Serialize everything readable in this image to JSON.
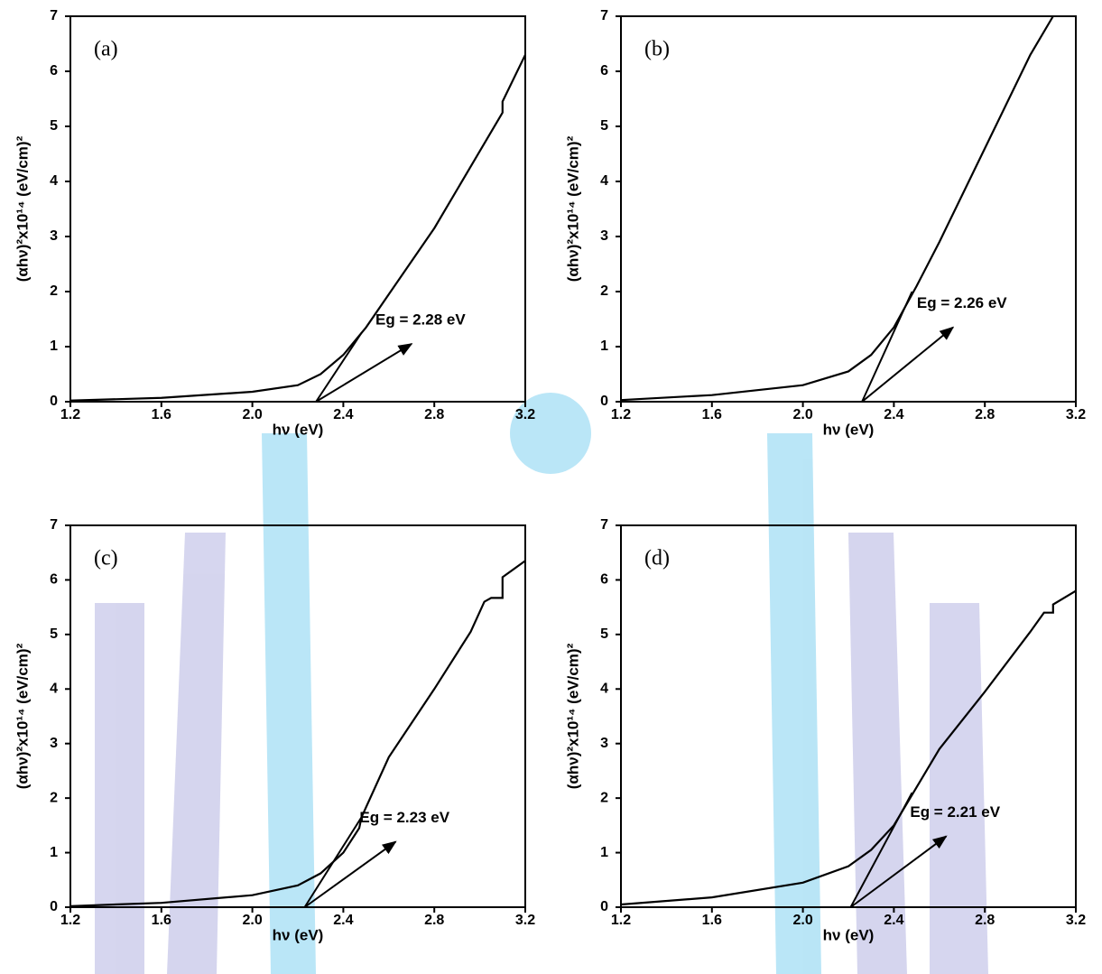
{
  "chart_data": [
    {
      "type": "line",
      "panel_label": "(a)",
      "annotation": "Eg = 2.28 eV",
      "x_label": "hν (eV)",
      "y_label": "(αhν)²x10¹⁴ (eV/cm)²",
      "color": "#000000",
      "x": [
        1.2,
        1.6,
        2.0,
        2.2,
        2.3,
        2.4,
        2.5,
        2.6,
        2.8,
        3.0,
        3.1,
        3.1,
        3.2
      ],
      "values": [
        0.02,
        0.07,
        0.18,
        0.3,
        0.5,
        0.85,
        1.35,
        1.95,
        3.15,
        4.55,
        5.25,
        5.45,
        6.3
      ],
      "tangent": {
        "x": [
          2.28,
          2.48
        ],
        "y": [
          0,
          1.25
        ]
      },
      "arrow": {
        "x": [
          2.28,
          2.7
        ],
        "y": [
          0,
          1.05
        ]
      },
      "xlim": [
        1.2,
        3.2
      ],
      "ylim": [
        0,
        7
      ],
      "xticks": [
        1.2,
        1.6,
        {
          "value": 2,
          "label": "2.0"
        },
        2.4,
        2.8,
        3.2
      ],
      "yticks": [
        0,
        1,
        2,
        3,
        4,
        5,
        6,
        7
      ]
    },
    {
      "type": "line",
      "panel_label": "(b)",
      "annotation": "Eg = 2.26 eV",
      "x_label": "hν (eV)",
      "y_label": "(αhν)²x10¹⁴ (eV/cm)²",
      "color": "#000000",
      "x": [
        1.2,
        1.6,
        2.0,
        2.2,
        2.3,
        2.4,
        2.5,
        2.6,
        2.8,
        3.0,
        3.1
      ],
      "values": [
        0.03,
        0.12,
        0.3,
        0.55,
        0.85,
        1.35,
        2.1,
        2.9,
        4.6,
        6.3,
        7.0
      ],
      "tangent": {
        "x": [
          2.26,
          2.48
        ],
        "y": [
          0,
          2.0
        ]
      },
      "arrow": {
        "x": [
          2.26,
          2.66
        ],
        "y": [
          0,
          1.35
        ]
      },
      "xlim": [
        1.2,
        3.2
      ],
      "ylim": [
        0,
        7
      ],
      "xticks": [
        1.2,
        1.6,
        {
          "value": 2,
          "label": "2.0"
        },
        2.4,
        2.8,
        3.2
      ],
      "yticks": [
        0,
        1,
        2,
        3,
        4,
        5,
        6,
        7
      ]
    },
    {
      "type": "line",
      "panel_label": "(c)",
      "annotation": "Eg = 2.23 eV",
      "x_label": "hν (eV)",
      "y_label": "(αhν)²x10¹⁴ (eV/cm)²",
      "color": "#000000",
      "x": [
        1.2,
        1.6,
        2.0,
        2.2,
        2.3,
        2.4,
        2.47,
        2.48,
        2.6,
        2.8,
        2.96,
        3.02,
        3.05,
        3.1,
        3.1,
        3.2
      ],
      "values": [
        0.02,
        0.08,
        0.22,
        0.4,
        0.62,
        1.0,
        1.45,
        1.65,
        2.75,
        4.0,
        5.05,
        5.6,
        5.67,
        5.67,
        6.05,
        6.35
      ],
      "tangent": {
        "x": [
          2.23,
          2.48
        ],
        "y": [
          0,
          1.65
        ]
      },
      "arrow": {
        "x": [
          2.23,
          2.63
        ],
        "y": [
          0,
          1.2
        ]
      },
      "xlim": [
        1.2,
        3.2
      ],
      "ylim": [
        0,
        7
      ],
      "xticks": [
        1.2,
        1.6,
        {
          "value": 2,
          "label": "2.0"
        },
        2.4,
        2.8,
        3.2
      ],
      "yticks": [
        0,
        1,
        2,
        3,
        4,
        5,
        6,
        7
      ]
    },
    {
      "type": "line",
      "panel_label": "(d)",
      "annotation": "Eg = 2.21 eV",
      "x_label": "hν (eV)",
      "y_label": "(αhν)²x10¹⁴ (eV/cm)²",
      "color": "#000000",
      "x": [
        1.2,
        1.6,
        2.0,
        2.2,
        2.3,
        2.4,
        2.5,
        2.6,
        2.8,
        3.0,
        3.06,
        3.1,
        3.1,
        3.2
      ],
      "values": [
        0.05,
        0.18,
        0.45,
        0.75,
        1.05,
        1.5,
        2.2,
        2.9,
        3.95,
        5.05,
        5.4,
        5.4,
        5.55,
        5.8
      ],
      "tangent": {
        "x": [
          2.21,
          2.48
        ],
        "y": [
          0,
          2.1
        ]
      },
      "arrow": {
        "x": [
          2.21,
          2.63
        ],
        "y": [
          0,
          1.3
        ]
      },
      "xlim": [
        1.2,
        3.2
      ],
      "ylim": [
        0,
        7
      ],
      "xticks": [
        1.2,
        1.6,
        {
          "value": 2,
          "label": "2.0"
        },
        2.4,
        2.8,
        3.2
      ],
      "yticks": [
        0,
        1,
        2,
        3,
        4,
        5,
        6,
        7
      ]
    }
  ]
}
